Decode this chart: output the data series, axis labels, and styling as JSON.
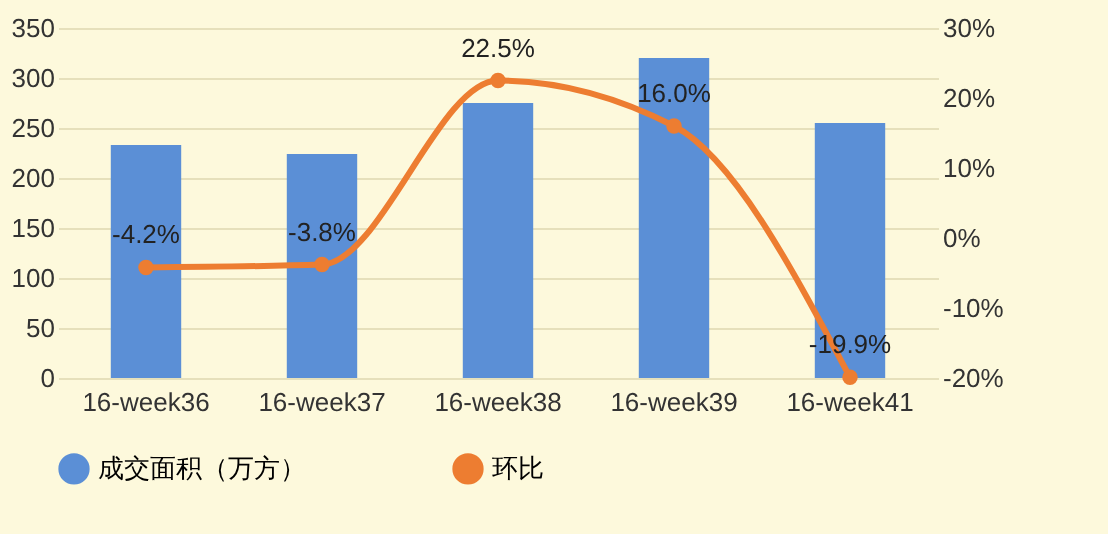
{
  "chart_data": {
    "type": "bar",
    "categories": [
      "16-week36",
      "16-week37",
      "16-week38",
      "16-week39",
      "16-week41"
    ],
    "series": [
      {
        "name": "成交面积（万方）",
        "color": "#5b8fd6",
        "values": [
          233,
          224,
          275,
          320,
          255
        ]
      },
      {
        "name": "环比",
        "type": "line",
        "axis": "y2",
        "color": "#ed7d31",
        "values": [
          -4.2,
          -3.8,
          22.5,
          16.0,
          -19.9
        ],
        "value_labels": [
          "-4.2%",
          "-3.8%",
          "22.5%",
          "16.0%",
          "-19.9%"
        ]
      }
    ],
    "ylim": [
      0,
      350
    ],
    "yticks": [
      0,
      50,
      100,
      150,
      200,
      250,
      300,
      350
    ],
    "y2lim": [
      -20,
      30
    ],
    "y2ticks": [
      {
        "value": -20,
        "label": "-20%"
      },
      {
        "value": -10,
        "label": "-10%"
      },
      {
        "value": 0,
        "label": "0%"
      },
      {
        "value": 10,
        "label": "10%"
      },
      {
        "value": 20,
        "label": "20%"
      },
      {
        "value": 30,
        "label": "30%"
      }
    ],
    "grid": "y",
    "legend": "bottom",
    "marker": "circle"
  }
}
